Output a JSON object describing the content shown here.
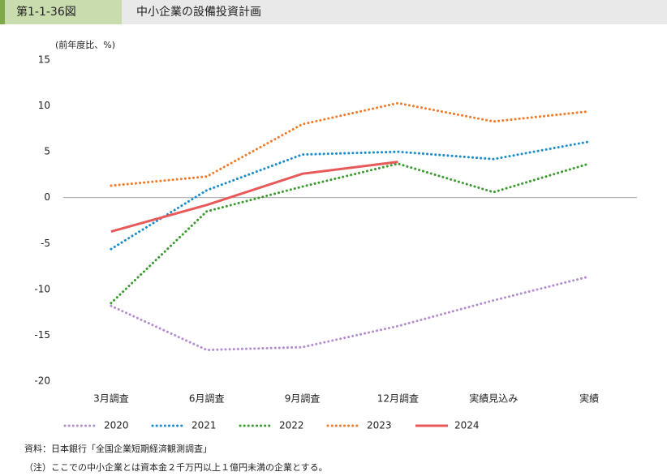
{
  "figure_number": "第1-1-36図",
  "chart_data": {
    "type": "line",
    "title": "中小企業の設備投資計画",
    "y_label": "(前年度比、%)",
    "categories": [
      "3月調査",
      "6月調査",
      "9月調査",
      "12月調査",
      "実績見込み",
      "実績"
    ],
    "series": [
      {
        "name": "2020",
        "color": "#b48fd0",
        "style": "dotted",
        "values": [
          -11.8,
          -16.6,
          -16.3,
          -14.0,
          -11.2,
          -8.6
        ]
      },
      {
        "name": "2021",
        "color": "#1a8cc8",
        "style": "dotted",
        "values": [
          -5.6,
          0.8,
          4.7,
          5.0,
          4.2,
          6.1
        ]
      },
      {
        "name": "2022",
        "color": "#3a9a2e",
        "style": "dotted",
        "values": [
          -11.5,
          -1.5,
          1.2,
          3.7,
          0.6,
          3.7
        ]
      },
      {
        "name": "2023",
        "color": "#f07b2b",
        "style": "dotted",
        "values": [
          1.3,
          2.3,
          8.0,
          10.3,
          8.3,
          9.4
        ]
      },
      {
        "name": "2024",
        "color": "#e85a5a",
        "style": "solid",
        "values": [
          -3.7,
          -0.8,
          2.6,
          3.9,
          null,
          null
        ]
      }
    ],
    "ylim": [
      -20,
      15
    ],
    "yticks": [
      -20,
      -15,
      -10,
      -5,
      0,
      5,
      10,
      15
    ],
    "grid": false,
    "legend": "bottom"
  },
  "notes": [
    "資料：日本銀行「全国企業短期経済観測調査」",
    "（注）ここでの中小企業とは資本金２千万円以上１億円未満の企業とする。"
  ]
}
